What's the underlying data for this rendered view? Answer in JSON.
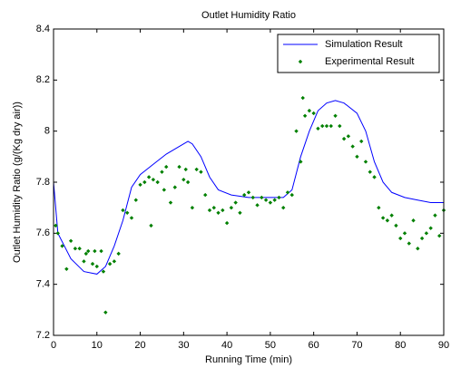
{
  "chart_data": {
    "type": "line",
    "title": "Outlet Humidity Ratio",
    "x_label": "Running Time (min)",
    "y_label": "Outlet Humidity Ratio (g/(Kg dry air))",
    "xlim": [
      0,
      90
    ],
    "xticks": [
      0,
      10,
      20,
      30,
      40,
      50,
      60,
      70,
      80,
      90
    ],
    "ylim": [
      7.2,
      8.4
    ],
    "yticks": [
      7.2,
      7.4,
      7.6,
      7.8,
      8,
      8.2,
      8.4
    ],
    "grid": false,
    "legend": "northeast",
    "series": [
      {
        "name": "Simulation Result",
        "color": "#0000ff",
        "mode": "line",
        "x": [
          0,
          1,
          4,
          7,
          10,
          12,
          14,
          16,
          18,
          20,
          23,
          26,
          29,
          31,
          32,
          34,
          36,
          38,
          41,
          45,
          50,
          53,
          55,
          57,
          59,
          61,
          63,
          65,
          67,
          70,
          72,
          74,
          76,
          78,
          81,
          84,
          87,
          90
        ],
        "values": [
          7.8,
          7.6,
          7.5,
          7.45,
          7.44,
          7.47,
          7.55,
          7.65,
          7.78,
          7.83,
          7.87,
          7.91,
          7.94,
          7.96,
          7.95,
          7.9,
          7.82,
          7.77,
          7.75,
          7.74,
          7.74,
          7.74,
          7.77,
          7.9,
          8.0,
          8.08,
          8.11,
          8.12,
          8.11,
          8.07,
          8.0,
          7.88,
          7.8,
          7.76,
          7.74,
          7.73,
          7.72,
          7.72
        ]
      },
      {
        "name": "Experimental Result",
        "color": "#008000",
        "mode": "markers",
        "x": [
          0.5,
          1,
          2,
          3,
          4,
          5,
          6,
          7,
          7.5,
          8,
          9,
          9.5,
          10,
          11,
          11.5,
          12,
          13,
          14,
          15,
          16,
          17,
          18,
          19,
          20,
          21,
          22,
          22.5,
          23,
          24,
          25,
          25.5,
          26,
          27,
          28,
          29,
          30,
          30.5,
          31,
          32,
          33,
          34,
          35,
          36,
          37,
          38,
          39,
          40,
          41,
          42,
          43,
          44,
          45,
          46,
          47,
          48,
          49,
          50,
          51,
          52,
          53,
          54,
          55,
          56,
          57,
          57.5,
          58,
          59,
          60,
          61,
          62,
          63,
          64,
          65,
          66,
          67,
          68,
          69,
          70,
          71,
          72,
          73,
          74,
          75,
          76,
          77,
          78,
          79,
          80,
          81,
          82,
          83,
          84,
          85,
          86,
          87,
          88,
          89,
          90
        ],
        "values": [
          7.63,
          7.6,
          7.55,
          7.46,
          7.57,
          7.54,
          7.54,
          7.49,
          7.52,
          7.53,
          7.48,
          7.53,
          7.47,
          7.53,
          7.45,
          7.29,
          7.48,
          7.49,
          7.52,
          7.69,
          7.68,
          7.66,
          7.73,
          7.79,
          7.8,
          7.82,
          7.63,
          7.81,
          7.8,
          7.84,
          7.77,
          7.86,
          7.72,
          7.78,
          7.86,
          7.81,
          7.85,
          7.8,
          7.7,
          7.85,
          7.84,
          7.75,
          7.69,
          7.7,
          7.68,
          7.69,
          7.64,
          7.7,
          7.72,
          7.68,
          7.75,
          7.76,
          7.74,
          7.71,
          7.74,
          7.73,
          7.72,
          7.73,
          7.74,
          7.7,
          7.76,
          7.75,
          8.0,
          7.88,
          8.13,
          8.06,
          8.08,
          8.07,
          8.01,
          8.02,
          8.02,
          8.02,
          8.06,
          8.02,
          7.97,
          7.98,
          7.94,
          7.9,
          7.96,
          7.88,
          7.84,
          7.82,
          7.7,
          7.66,
          7.65,
          7.67,
          7.63,
          7.58,
          7.6,
          7.56,
          7.65,
          7.54,
          7.58,
          7.6,
          7.62,
          7.67,
          7.59,
          7.69
        ]
      }
    ]
  }
}
